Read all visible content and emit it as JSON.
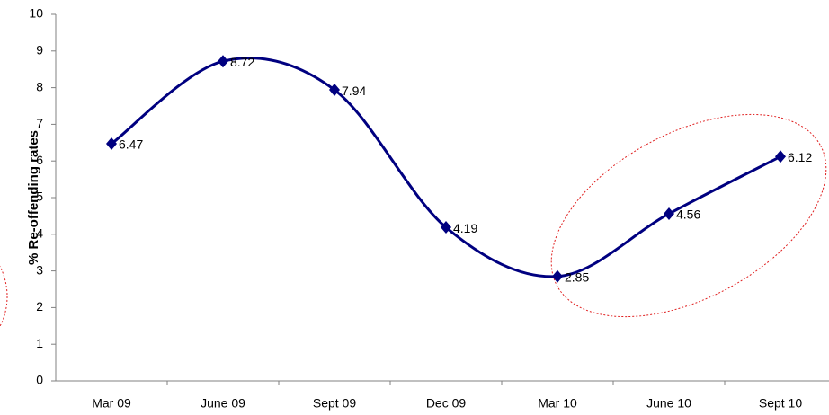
{
  "chart_data": {
    "type": "line",
    "y_label": "% Re-offending rates",
    "categories": [
      "Mar 09",
      "June 09",
      "Sept 09",
      "Dec 09",
      "Mar 10",
      "June 10",
      "Sept 10"
    ],
    "values": [
      6.47,
      8.72,
      7.94,
      4.19,
      2.85,
      4.56,
      6.12
    ],
    "color": "#000080",
    "ylim": [
      0,
      10
    ],
    "yticks": [
      0,
      1,
      2,
      3,
      4,
      5,
      6,
      7,
      8,
      9,
      10
    ],
    "smooth": true,
    "grid": false
  }
}
